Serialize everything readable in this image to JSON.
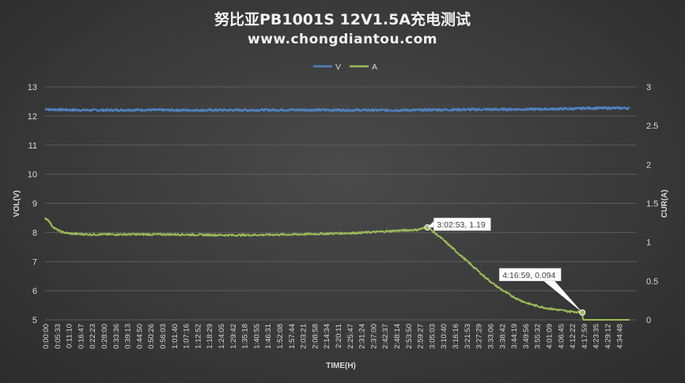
{
  "title": "努比亚PB1001S 12V1.5A充电测试",
  "subtitle": "www.chongdiantou.com",
  "colors": {
    "voltage": "#4f81bd",
    "current": "#9bbb59",
    "text": "#d9d9d9",
    "grid": "#5c5c5c"
  },
  "chart_data": {
    "type": "line",
    "xlabel": "TIME(H)",
    "ylabel": "VOL(V)",
    "y2label": "CUR(A)",
    "ylim": [
      5,
      13
    ],
    "y2lim": [
      0,
      3
    ],
    "yticks": [
      "5",
      "6",
      "7",
      "8",
      "9",
      "10",
      "11",
      "12",
      "13"
    ],
    "y2ticks": [
      "0",
      "0.5",
      "1",
      "1.5",
      "2",
      "2.5",
      "3"
    ],
    "x_tick_labels": [
      "0:00:00",
      "0:05:33",
      "0:11:10",
      "0:16:47",
      "0:22:23",
      "0:28:00",
      "0:33:36",
      "0:39:13",
      "0:44:50",
      "0:50:26",
      "0:56:03",
      "1:01:40",
      "1:07:16",
      "1:12:52",
      "1:18:29",
      "1:24:05",
      "1:29:42",
      "1:35:18",
      "1:40:55",
      "1:46:31",
      "1:52:08",
      "1:57:44",
      "2:03:21",
      "2:08:58",
      "2:14:34",
      "2:20:11",
      "2:25:47",
      "2:31:24",
      "2:37:00",
      "2:42:37",
      "2:48:14",
      "2:53:50",
      "2:59:27",
      "3:05:03",
      "3:10:40",
      "3:16:16",
      "3:21:53",
      "3:27:29",
      "3:33:06",
      "3:38:42",
      "3:44:19",
      "3:49:56",
      "3:55:32",
      "4:01:09",
      "4:06:45",
      "4:12:22",
      "4:17:59",
      "4:23:35",
      "4:29:12",
      "4:34:48"
    ],
    "legend": "top",
    "grid": true,
    "series": [
      {
        "name": "V",
        "axis": "left",
        "x_min": [
          0,
          2,
          5,
          10,
          20,
          30,
          45,
          60,
          90,
          120,
          150,
          180,
          182.88,
          200,
          230,
          255,
          256.98,
          258,
          270,
          279.6
        ],
        "values": [
          12.25,
          12.22,
          12.22,
          12.21,
          12.2,
          12.2,
          12.21,
          12.2,
          12.2,
          12.21,
          12.2,
          12.2,
          12.21,
          12.22,
          12.23,
          12.25,
          12.26,
          12.27,
          12.27,
          12.27
        ]
      },
      {
        "name": "A",
        "axis": "right",
        "x_min": [
          0,
          0.5,
          1.5,
          3,
          5,
          8,
          12,
          20,
          40,
          60,
          90,
          120,
          150,
          170,
          178,
          182.88,
          185,
          190,
          195,
          200,
          205,
          210,
          215,
          220,
          225,
          230,
          235,
          240,
          245,
          250,
          255,
          256.98,
          257.3,
          260,
          270,
          279.6
        ],
        "values": [
          1.31,
          1.3,
          1.29,
          1.22,
          1.17,
          1.13,
          1.11,
          1.1,
          1.1,
          1.1,
          1.09,
          1.1,
          1.12,
          1.15,
          1.16,
          1.19,
          1.15,
          1.04,
          0.92,
          0.8,
          0.68,
          0.56,
          0.45,
          0.36,
          0.28,
          0.22,
          0.18,
          0.15,
          0.13,
          0.11,
          0.1,
          0.094,
          0.0,
          0.0,
          0.0,
          0.0
        ]
      }
    ],
    "annotations": [
      {
        "text": "3:02:53, 1.19",
        "x_min": 182.88,
        "y": 1.19,
        "series": "A"
      },
      {
        "text": "4:16:59, 0.094",
        "x_min": 256.98,
        "y": 0.094,
        "series": "A"
      }
    ]
  }
}
